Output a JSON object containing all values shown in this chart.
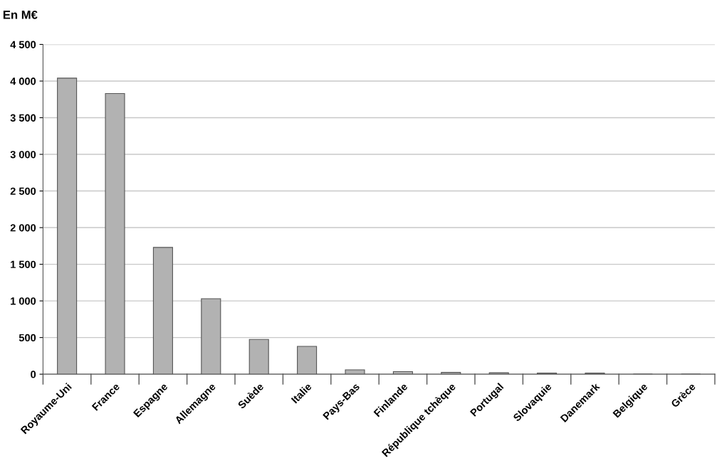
{
  "chart_data": {
    "type": "bar",
    "ylabel": "En M€",
    "categories": [
      "Royaume-Uni",
      "France",
      "Espagne",
      "Allemagne",
      "Suède",
      "Italie",
      "Pays-Bas",
      "Finlande",
      "République tchèque",
      "Portugal",
      "Slovaquie",
      "Danemark",
      "Belgique",
      "Grèce"
    ],
    "values": [
      4040,
      3830,
      1730,
      1030,
      475,
      380,
      60,
      35,
      25,
      20,
      15,
      15,
      0,
      0
    ],
    "color": "#b2b2b2",
    "ylim": [
      0,
      4500
    ],
    "yticks": [
      0,
      500,
      {
        "value": 1000,
        "label": "1 000"
      },
      {
        "value": 1500,
        "label": "1 500"
      },
      {
        "value": 2000,
        "label": "2 000"
      },
      {
        "value": 2500,
        "label": "2 500"
      },
      {
        "value": 3000,
        "label": "3 000"
      },
      {
        "value": 3500,
        "label": "3 500"
      },
      {
        "value": 4000,
        "label": "4 000"
      },
      {
        "value": 4500,
        "label": "4 500"
      }
    ],
    "grid": "y",
    "legend": false
  }
}
